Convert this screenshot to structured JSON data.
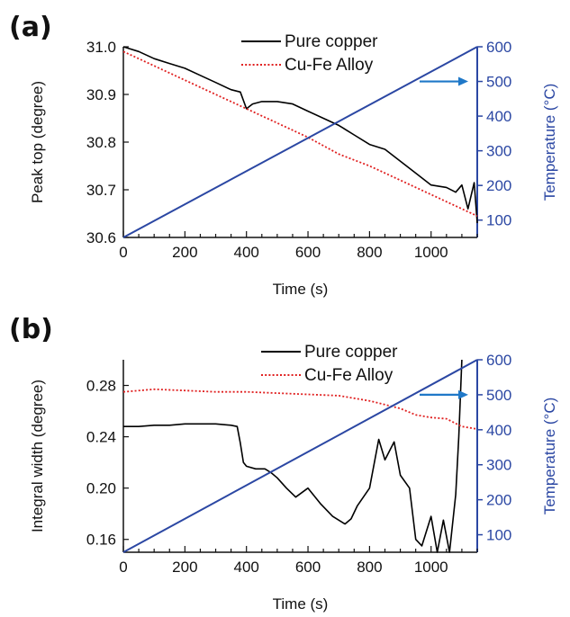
{
  "chart_data": [
    {
      "panel_label": "(a)",
      "type": "line",
      "xlabel": "Time (s)",
      "ylabel": "Peak top (degree)",
      "y2label": "Temperature (°C)",
      "xlim": [
        0,
        1150
      ],
      "ylim": [
        30.6,
        31.0
      ],
      "y2lim": [
        50,
        600
      ],
      "xticks": [
        0,
        200,
        400,
        600,
        800,
        1000
      ],
      "yticks": [
        "30.6",
        "30.7",
        "30.8",
        "30.9",
        "31.0"
      ],
      "y2ticks": [
        "100",
        "200",
        "300",
        "400",
        "500",
        "600"
      ],
      "legend_position": "top-center",
      "series": [
        {
          "name": "Pure copper",
          "axis": "left",
          "color": "#000000",
          "style": "solid",
          "x": [
            0,
            50,
            100,
            150,
            200,
            250,
            300,
            350,
            380,
            400,
            420,
            450,
            500,
            550,
            600,
            650,
            700,
            750,
            800,
            850,
            900,
            950,
            1000,
            1050,
            1080,
            1100,
            1120,
            1140,
            1150
          ],
          "y": [
            31.0,
            30.99,
            30.975,
            30.965,
            30.955,
            30.94,
            30.925,
            30.91,
            30.905,
            30.87,
            30.88,
            30.885,
            30.885,
            30.88,
            30.865,
            30.85,
            30.835,
            30.815,
            30.795,
            30.785,
            30.76,
            30.735,
            30.71,
            30.705,
            30.695,
            30.71,
            30.66,
            30.715,
            30.63
          ]
        },
        {
          "name": "Cu-Fe Alloy",
          "axis": "left",
          "color": "#e02020",
          "style": "dotted",
          "x": [
            0,
            100,
            200,
            300,
            400,
            500,
            600,
            700,
            800,
            900,
            1000,
            1100,
            1150
          ],
          "y": [
            30.99,
            30.96,
            30.93,
            30.9,
            30.87,
            30.84,
            30.81,
            30.775,
            30.75,
            30.72,
            30.69,
            30.66,
            30.645
          ]
        },
        {
          "name": "Temperature",
          "axis": "right",
          "color": "#2b47a3",
          "style": "solid",
          "x": [
            0,
            1150
          ],
          "y": [
            50,
            600
          ]
        }
      ]
    },
    {
      "panel_label": "(b)",
      "type": "line",
      "xlabel": "Time (s)",
      "ylabel": "Integral width (degree)",
      "y2label": "Temperature (°C)",
      "xlim": [
        0,
        1150
      ],
      "ylim": [
        0.15,
        0.3
      ],
      "y2lim": [
        50,
        600
      ],
      "xticks": [
        0,
        200,
        400,
        600,
        800,
        1000
      ],
      "yticks": [
        "0.16",
        "0.20",
        "0.24",
        "0.28"
      ],
      "y2ticks": [
        "100",
        "200",
        "300",
        "400",
        "500",
        "600"
      ],
      "legend_position": "top-center",
      "series": [
        {
          "name": "Pure copper",
          "axis": "left",
          "color": "#000000",
          "style": "solid",
          "x": [
            0,
            50,
            100,
            150,
            200,
            250,
            300,
            350,
            370,
            380,
            390,
            400,
            430,
            460,
            480,
            500,
            530,
            560,
            600,
            640,
            680,
            720,
            740,
            760,
            800,
            830,
            850,
            880,
            900,
            930,
            950,
            970,
            1000,
            1020,
            1040,
            1060,
            1080,
            1090,
            1100
          ],
          "y": [
            0.248,
            0.248,
            0.249,
            0.249,
            0.25,
            0.25,
            0.25,
            0.249,
            0.248,
            0.235,
            0.22,
            0.217,
            0.215,
            0.215,
            0.212,
            0.208,
            0.2,
            0.193,
            0.2,
            0.188,
            0.178,
            0.172,
            0.176,
            0.186,
            0.2,
            0.238,
            0.222,
            0.236,
            0.21,
            0.2,
            0.16,
            0.155,
            0.178,
            0.15,
            0.175,
            0.15,
            0.195,
            0.24,
            0.3
          ]
        },
        {
          "name": "Cu-Fe Alloy",
          "axis": "left",
          "color": "#e02020",
          "style": "dotted",
          "x": [
            0,
            100,
            200,
            300,
            400,
            500,
            600,
            700,
            800,
            850,
            900,
            950,
            1000,
            1050,
            1100,
            1150
          ],
          "y": [
            0.275,
            0.277,
            0.276,
            0.275,
            0.275,
            0.274,
            0.273,
            0.272,
            0.268,
            0.265,
            0.262,
            0.257,
            0.255,
            0.254,
            0.248,
            0.246
          ]
        },
        {
          "name": "Temperature",
          "axis": "right",
          "color": "#2b47a3",
          "style": "solid",
          "x": [
            0,
            1150
          ],
          "y": [
            50,
            600
          ]
        }
      ]
    }
  ]
}
